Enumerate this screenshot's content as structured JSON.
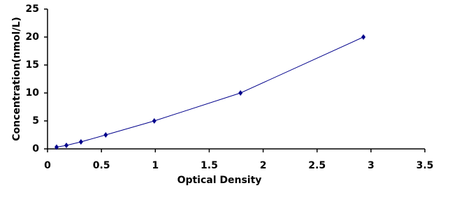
{
  "chart_data": {
    "type": "scatter",
    "x_label": "Optical Density",
    "y_label": "Concentration(nmol/L)",
    "series": [
      {
        "color": "#00008b",
        "x": [
          0.084,
          0.175,
          0.31,
          0.54,
          0.99,
          1.79,
          2.93
        ],
        "values": [
          0.31,
          0.63,
          1.25,
          2.5,
          5,
          10,
          20
        ]
      }
    ],
    "xlim": [
      0,
      3.5
    ],
    "xticks": [
      0,
      0.5,
      1,
      1.5,
      2,
      2.5,
      3,
      3.5
    ],
    "ylim": [
      0,
      25
    ],
    "yticks": [
      0,
      5,
      10,
      15,
      20,
      25
    ],
    "grid": false
  }
}
